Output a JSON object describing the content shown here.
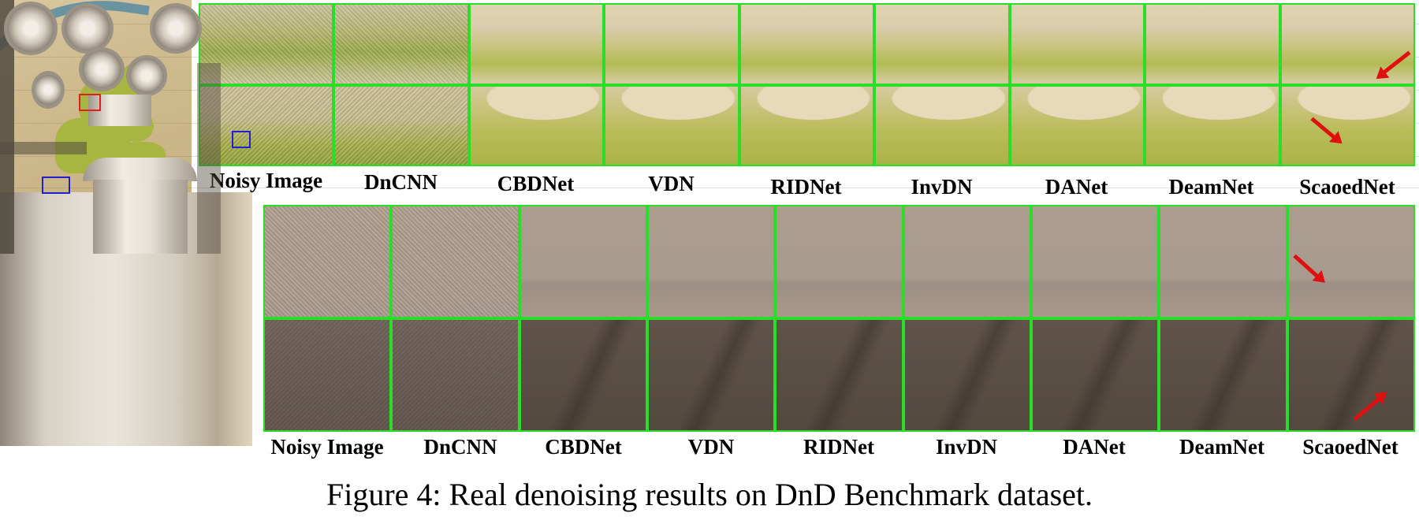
{
  "row1": {
    "labels": [
      "Noisy Image",
      "DnCNN",
      "CBDNet",
      "VDN",
      "RIDNet",
      "InvDN",
      "DANet",
      "DeamNet",
      "ScaoedNet"
    ]
  },
  "row2": {
    "labels": [
      "Noisy Image",
      "DnCNN",
      "CBDNet",
      "VDN",
      "RIDNet",
      "InvDN",
      "DANet",
      "DeamNet",
      "ScaoedNet"
    ]
  },
  "caption": "Figure 4: Real denoising results on DnD Benchmark dataset.",
  "colors": {
    "tile_border": "#29dd29",
    "arrow": "#e01010",
    "box_red": "#e02020",
    "box_blue": "#2020d0"
  }
}
